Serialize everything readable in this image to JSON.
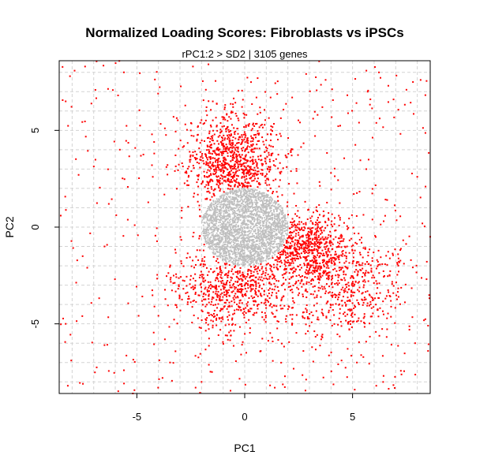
{
  "chart_data": {
    "type": "scatter",
    "title": "Normalized Loading Scores: Fibroblasts vs iPSCs",
    "subtitle": "rPC1:2 > SD2 | 3105 genes",
    "xlabel": "PC1",
    "ylabel": "PC2",
    "xlim": [
      -8.6,
      8.6
    ],
    "ylim": [
      -8.6,
      8.6
    ],
    "x_ticks": [
      -5,
      0,
      5
    ],
    "y_ticks": [
      -5,
      0,
      5
    ],
    "grid": true,
    "grid_step": 1,
    "series": [
      {
        "role": "below-threshold",
        "color": "#bebebe",
        "region": {
          "shape": "circle",
          "center": [
            0,
            0
          ],
          "radius": 2
        }
      },
      {
        "role": "above-threshold",
        "color": "#ff0000",
        "count": 3105,
        "clusters": [
          {
            "center": [
              -0.5,
              3.2
            ],
            "spread": [
              1.1,
              1.3
            ]
          },
          {
            "center": [
              2.6,
              -1.0
            ],
            "spread": [
              1.2,
              0.9
            ]
          },
          {
            "center": [
              -0.6,
              -3.2
            ],
            "spread": [
              1.3,
              1.1
            ]
          },
          {
            "center": [
              4.5,
              -3.0
            ],
            "spread": [
              1.5,
              1.3
            ]
          }
        ],
        "sample_points": [
          [
            -8.3,
            6.5
          ],
          [
            -8.1,
            7.8
          ],
          [
            -7.4,
            8.3
          ],
          [
            -5.6,
            8.0
          ],
          [
            -4.2,
            4.4
          ],
          [
            -2.4,
            8.3
          ],
          [
            -1.8,
            7.1
          ],
          [
            0.6,
            7.7
          ],
          [
            2.2,
            6.7
          ],
          [
            5.7,
            7.0
          ],
          [
            6.9,
            6.6
          ],
          [
            7.8,
            7.5
          ],
          [
            5.3,
            5.4
          ],
          [
            8.0,
            2.6
          ],
          [
            8.6,
            -0.5
          ],
          [
            8.5,
            -6.4
          ],
          [
            7.9,
            -6.0
          ],
          [
            6.1,
            -8.2
          ],
          [
            5.1,
            -8.4
          ],
          [
            3.6,
            -5.7
          ],
          [
            -2.0,
            -8.0
          ],
          [
            -5.6,
            -7.4
          ],
          [
            -7.5,
            -8.1
          ],
          [
            -8.2,
            -8.2
          ],
          [
            -8.3,
            -5.0
          ],
          [
            -7.3,
            -2.1
          ],
          [
            -6.5,
            -1.0
          ],
          [
            -5.1,
            0.1
          ],
          [
            -6.3,
            1.2
          ],
          [
            -7.7,
            2.7
          ],
          [
            -3.3,
            5.7
          ],
          [
            1.2,
            6.7
          ],
          [
            3.6,
            6.2
          ],
          [
            -1.5,
            4.6
          ],
          [
            0.8,
            5.3
          ],
          [
            -4.3,
            3.2
          ],
          [
            4.0,
            2.8
          ],
          [
            5.2,
            -7.0
          ],
          [
            -6.5,
            -6.1
          ],
          [
            -3.7,
            -5.8
          ]
        ]
      }
    ]
  }
}
